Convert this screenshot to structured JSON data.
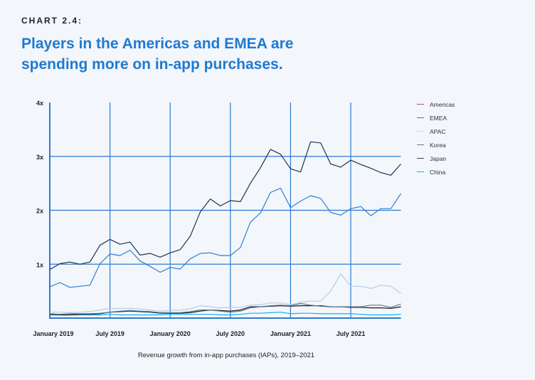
{
  "kicker": "CHART 2.4:",
  "title": "Players in the Americas and EMEA are spending more on in-app purchases.",
  "chart_data": {
    "type": "line",
    "title": "Players in the Americas and EMEA are spending more on in-app purchases.",
    "caption": "Revenue growth from in-app purchases (IAPs), 2019–2021",
    "x_start": "January 2019",
    "x_end": "December 2021",
    "x_frequency": "monthly",
    "x_ticks": [
      "January 2019",
      "July 2019",
      "January 2020",
      "July 2020",
      "January 2021",
      "July 2021"
    ],
    "y_ticks": [
      "1x",
      "2x",
      "3x",
      "4x"
    ],
    "ylim": [
      0,
      4
    ],
    "grid": true,
    "legend_position": "right",
    "series": [
      {
        "name": "Americas",
        "color": "#1c3553",
        "legend_color": "#a8566f",
        "values": [
          0.9,
          1.01,
          1.04,
          1.0,
          1.04,
          1.35,
          1.46,
          1.37,
          1.41,
          1.17,
          1.2,
          1.13,
          1.21,
          1.27,
          1.52,
          1.97,
          2.21,
          2.08,
          2.18,
          2.16,
          2.5,
          2.79,
          3.13,
          3.04,
          2.77,
          2.71,
          3.27,
          3.25,
          2.86,
          2.8,
          2.93,
          2.85,
          2.78,
          2.7,
          2.65,
          2.86
        ]
      },
      {
        "name": "EMEA",
        "color": "#2f7fd0",
        "legend_color": "#2f7fd0",
        "values": [
          0.58,
          0.66,
          0.57,
          0.59,
          0.61,
          1.01,
          1.19,
          1.16,
          1.26,
          1.06,
          0.96,
          0.85,
          0.94,
          0.91,
          1.1,
          1.2,
          1.21,
          1.16,
          1.16,
          1.31,
          1.78,
          1.95,
          2.33,
          2.41,
          2.05,
          2.17,
          2.27,
          2.22,
          1.96,
          1.91,
          2.03,
          2.07,
          1.9,
          2.03,
          2.03,
          2.31
        ]
      },
      {
        "name": "APAC",
        "color": "#b5cde9",
        "legend_color": "#c2d8f0",
        "values": [
          0.11,
          0.11,
          0.1,
          0.11,
          0.12,
          0.15,
          0.18,
          0.18,
          0.18,
          0.17,
          0.15,
          0.13,
          0.14,
          0.15,
          0.17,
          0.23,
          0.21,
          0.19,
          0.2,
          0.2,
          0.24,
          0.25,
          0.28,
          0.28,
          0.25,
          0.29,
          0.32,
          0.31,
          0.5,
          0.82,
          0.59,
          0.59,
          0.55,
          0.61,
          0.59,
          0.46
        ]
      },
      {
        "name": "Korea",
        "color": "#5d7a96",
        "legend_color": "#5d7a96",
        "values": [
          0.08,
          0.07,
          0.08,
          0.08,
          0.08,
          0.09,
          0.11,
          0.13,
          0.14,
          0.13,
          0.12,
          0.1,
          0.1,
          0.1,
          0.12,
          0.15,
          0.15,
          0.13,
          0.11,
          0.13,
          0.19,
          0.21,
          0.23,
          0.24,
          0.23,
          0.27,
          0.24,
          0.22,
          0.21,
          0.21,
          0.21,
          0.21,
          0.24,
          0.24,
          0.2,
          0.26
        ]
      },
      {
        "name": "Japan",
        "color": "#1a1a1a",
        "legend_color": "#444444",
        "values": [
          0.07,
          0.06,
          0.06,
          0.07,
          0.07,
          0.08,
          0.11,
          0.12,
          0.13,
          0.12,
          0.11,
          0.09,
          0.09,
          0.09,
          0.1,
          0.13,
          0.15,
          0.14,
          0.13,
          0.15,
          0.21,
          0.21,
          0.22,
          0.23,
          0.22,
          0.23,
          0.23,
          0.23,
          0.21,
          0.21,
          0.2,
          0.2,
          0.19,
          0.19,
          0.18,
          0.21
        ]
      },
      {
        "name": "China",
        "color": "#10b4ec",
        "legend_color": "#10b4ec",
        "values": [
          0.06,
          0.06,
          0.06,
          0.06,
          0.06,
          0.06,
          0.07,
          0.06,
          0.06,
          0.06,
          0.06,
          0.06,
          0.07,
          0.07,
          0.07,
          0.07,
          0.07,
          0.06,
          0.06,
          0.07,
          0.09,
          0.09,
          0.1,
          0.11,
          0.08,
          0.09,
          0.09,
          0.08,
          0.08,
          0.08,
          0.08,
          0.07,
          0.06,
          0.06,
          0.06,
          0.07
        ]
      }
    ]
  }
}
